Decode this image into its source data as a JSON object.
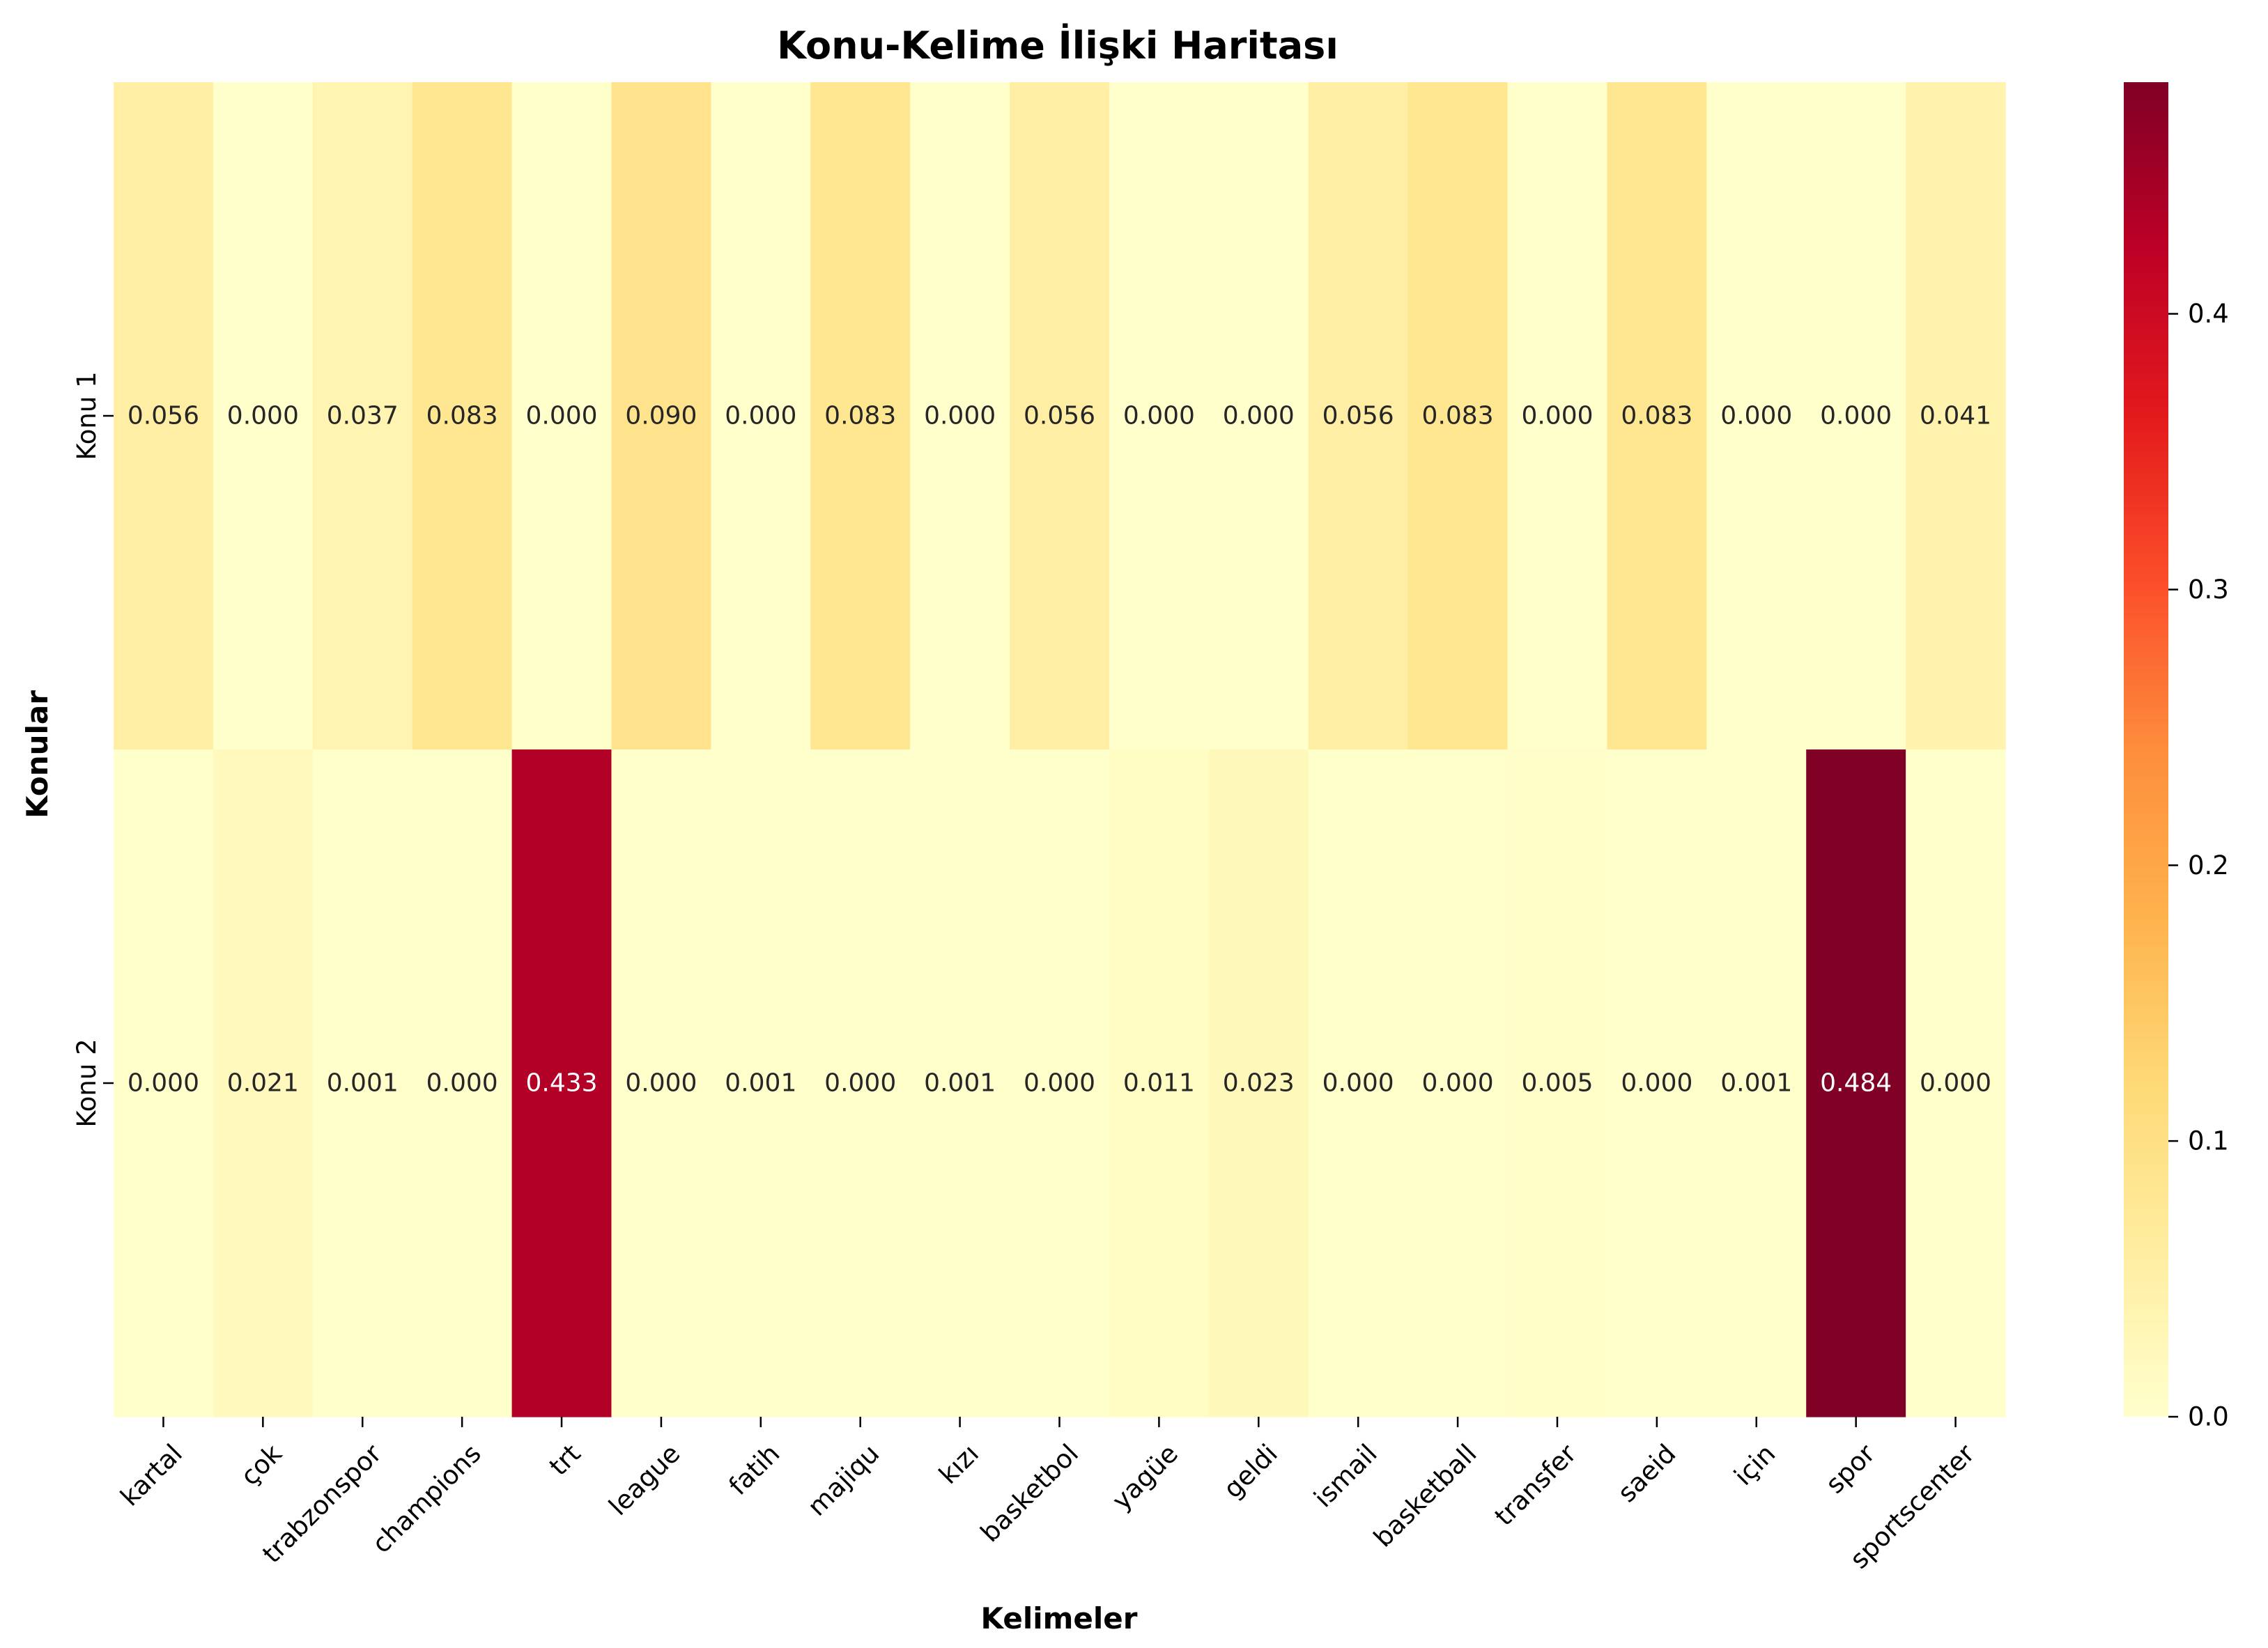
{
  "chart_data": {
    "type": "heatmap",
    "title": "Konu-Kelime İlişki Haritası",
    "xlabel": "Kelimeler",
    "ylabel": "Konular",
    "rows": [
      "Konu 1",
      "Konu 2"
    ],
    "columns": [
      "kartal",
      "çok",
      "trabzonspor",
      "champions",
      "trt",
      "league",
      "fatih",
      "majiqu",
      "kızı",
      "basketbol",
      "yagüe",
      "geldi",
      "ismail",
      "basketball",
      "transfer",
      "saeid",
      "için",
      "spor",
      "sportscenter"
    ],
    "values": [
      [
        0.056,
        0.0,
        0.037,
        0.083,
        0.0,
        0.09,
        0.0,
        0.083,
        0.0,
        0.056,
        0.0,
        0.0,
        0.056,
        0.083,
        0.0,
        0.083,
        0.0,
        0.0,
        0.041
      ],
      [
        0.0,
        0.021,
        0.001,
        0.0,
        0.433,
        0.0,
        0.001,
        0.0,
        0.001,
        0.0,
        0.011,
        0.023,
        0.0,
        0.0,
        0.005,
        0.0,
        0.001,
        0.484,
        0.0
      ]
    ],
    "annotations": [
      [
        "0.056",
        "0.000",
        "0.037",
        "0.083",
        "0.000",
        "0.090",
        "0.000",
        "0.083",
        "0.000",
        "0.056",
        "0.000",
        "0.000",
        "0.056",
        "0.083",
        "0.000",
        "0.083",
        "0.000",
        "0.000",
        "0.041"
      ],
      [
        "0.000",
        "0.021",
        "0.001",
        "0.000",
        "0.433",
        "0.000",
        "0.001",
        "0.000",
        "0.001",
        "0.000",
        "0.011",
        "0.023",
        "0.000",
        "0.000",
        "0.005",
        "0.000",
        "0.001",
        "0.484",
        "0.000"
      ]
    ],
    "colormap": "YlOrRd",
    "vmin": 0.0,
    "vmax": 0.484,
    "colorbar_ticks": [
      0.0,
      0.1,
      0.2,
      0.3,
      0.4
    ],
    "colorbar_tick_labels": [
      "0.0",
      "0.1",
      "0.2",
      "0.3",
      "0.4"
    ],
    "colormap_stops": [
      "#ffffcc",
      "#ffeda0",
      "#fed976",
      "#feb24c",
      "#fd8d3c",
      "#fc4e2a",
      "#e31a1c",
      "#bd0026",
      "#800026"
    ]
  }
}
